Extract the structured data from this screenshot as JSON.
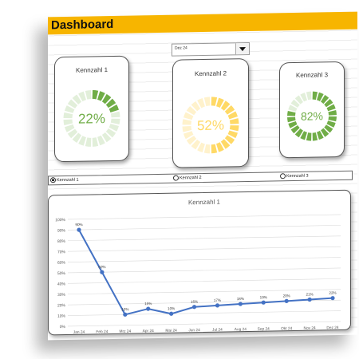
{
  "header": {
    "title": "Dashboard"
  },
  "period_select": {
    "value": "Dez 24"
  },
  "kpis": [
    {
      "label": "Kennzahl 1",
      "value_text": "22%",
      "fraction": 0.22,
      "color": "#70ad47",
      "track": "#e2efda",
      "text_color": "#70ad47"
    },
    {
      "label": "Kennzahl 2",
      "value_text": "52%",
      "fraction": 0.52,
      "color": "#ffd966",
      "track": "#fff2cc",
      "text_color": "#ffd966"
    },
    {
      "label": "Kennzahl 3",
      "value_text": "82%",
      "fraction": 0.82,
      "color": "#70ad47",
      "track": "#e2efda",
      "text_color": "#70ad47"
    }
  ],
  "radio_options": [
    {
      "label": "Kennzahl 1",
      "selected": true
    },
    {
      "label": "Kennzahl 2",
      "selected": false
    },
    {
      "label": "Kennzahl 3",
      "selected": false
    }
  ],
  "chart_data": {
    "type": "line",
    "title": "Kennzahl 1",
    "categories": [
      "Jan 24",
      "Feb 24",
      "Mrz 24",
      "Apr 24",
      "Mai 24",
      "Jun 24",
      "Jul 24",
      "Aug 24",
      "Sep 24",
      "Okt 24",
      "Nov 24",
      "Dez 24"
    ],
    "values": [
      90,
      50,
      10,
      15,
      10,
      16,
      17,
      18,
      19,
      20,
      21,
      22
    ],
    "data_labels": [
      "90%",
      "50%",
      "10%",
      "15%",
      "10%",
      "16%",
      "17%",
      "18%",
      "19%",
      "20%",
      "21%",
      "22%"
    ],
    "y_ticks": [
      "0%",
      "10%",
      "20%",
      "30%",
      "40%",
      "50%",
      "60%",
      "70%",
      "80%",
      "90%",
      "100%"
    ],
    "ylim": [
      0,
      100
    ],
    "line_color": "#4472c4",
    "grid": true
  }
}
